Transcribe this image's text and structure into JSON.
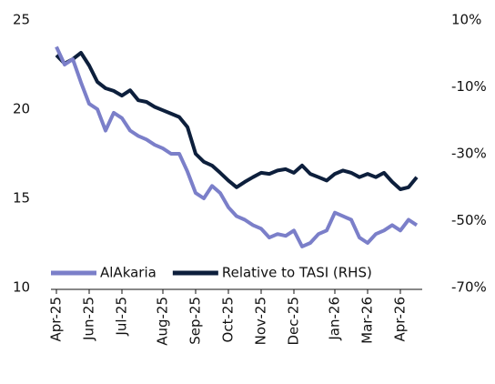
{
  "chart_data": {
    "type": "line",
    "categories": [
      "Apr-25",
      null,
      null,
      null,
      "Jun-25",
      null,
      null,
      null,
      "Jul-25",
      null,
      null,
      null,
      null,
      "Aug-25",
      null,
      null,
      null,
      "Sep-25",
      null,
      null,
      null,
      "Oct-25",
      null,
      null,
      null,
      "Nov-25",
      null,
      null,
      null,
      "Dec-25",
      null,
      null,
      null,
      null,
      "Jan-26",
      null,
      null,
      null,
      "Mar-26",
      null,
      null,
      null,
      "Apr-26",
      null,
      null
    ],
    "series": [
      {
        "name": "AlAkaria",
        "color": "#7b7fc9",
        "values": [
          23.5,
          22.5,
          22.8,
          21.5,
          20.3,
          20,
          18.8,
          19.8,
          19.5,
          18.8,
          18.5,
          18.3,
          18,
          17.8,
          17.5,
          17.5,
          16.5,
          15.3,
          15,
          15.7,
          15.3,
          14.5,
          14,
          13.8,
          13.5,
          13.3,
          12.8,
          13,
          12.9,
          13.2,
          12.3,
          12.5,
          13,
          13.2,
          14.2,
          14,
          13.8,
          12.8,
          12.5,
          13,
          13.2,
          13.5,
          13.2,
          13.8,
          13.5
        ]
      },
      {
        "name": "Relative to TASI (RHS)",
        "color": "#0d1f3c",
        "axis": "y2",
        "values": [
          -0.5,
          -3,
          -1.7,
          0.2,
          -3.6,
          -8.5,
          -10.4,
          -11.2,
          -12.6,
          -11,
          -14,
          -14.5,
          -16,
          -17,
          -18,
          -19,
          -22,
          -30,
          -32.4,
          -33.5,
          -35.7,
          -38,
          -40,
          -38.4,
          -37,
          -35.7,
          -36,
          -35,
          -34.6,
          -35.7,
          -33.5,
          -36,
          -37,
          -38,
          -36,
          -35,
          -35.7,
          -37,
          -36,
          -37,
          -35.7,
          -38.4,
          -40.6,
          -40,
          -37
        ]
      }
    ],
    "ylim": [
      10,
      25
    ],
    "yticks": [
      10,
      15,
      20,
      25
    ],
    "y2lim": [
      -70,
      10
    ],
    "y2ticks": [
      {
        "value": -70,
        "label": "-70%"
      },
      {
        "value": -50,
        "label": "-50%"
      },
      {
        "value": -30,
        "label": "-30%"
      },
      {
        "value": -10,
        "label": "-10%"
      },
      {
        "value": 10,
        "label": "10%"
      }
    ],
    "legend": "lower-left",
    "grid": false
  }
}
